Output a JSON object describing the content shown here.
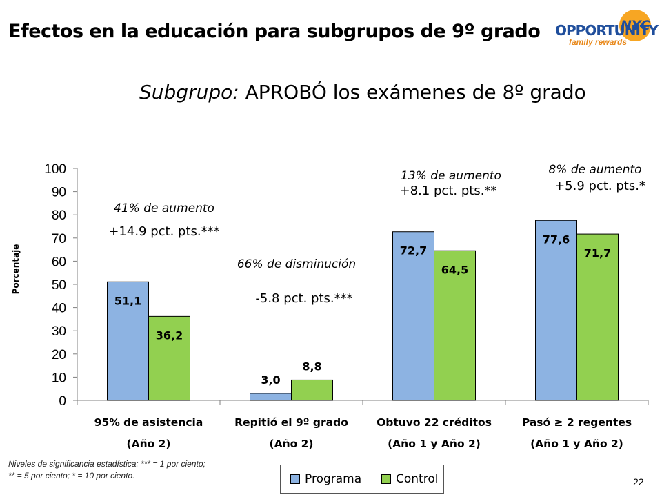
{
  "slide": {
    "title": "Efectos en la educación para subgrupos de 9º grado",
    "subtitle_label": "Subgrupo:",
    "subtitle_rest": "APROBÓ los exámenes de 8º grado",
    "page_number": "22",
    "footnote_line1": "Niveles de significancia estadística: *** = 1 por ciento;",
    "footnote_line2": "** = 5 por ciento; * = 10 por ciento."
  },
  "logo": {
    "word": "OPPORTUNITY",
    "nyc": "NYC",
    "tagline": "family rewards"
  },
  "colors": {
    "programa": "#8db3e2",
    "control": "#92d050",
    "rule": "#b9c98a"
  },
  "chart_data": {
    "type": "bar",
    "ylabel": "Porcentaje",
    "ylim": [
      0,
      100
    ],
    "yticks": [
      0,
      10,
      20,
      30,
      40,
      50,
      60,
      70,
      80,
      90,
      100
    ],
    "grid": false,
    "legend_position": "bottom-center",
    "categories": [
      {
        "line1": "95% de asistencia",
        "line2": "(Año 2)"
      },
      {
        "line1": "Repitió el 9º grado",
        "line2": "(Año 2)"
      },
      {
        "line1": "Obtuvo 22 créditos",
        "line2": "(Año 1 y Año 2)"
      },
      {
        "line1": "Pasó ≥ 2 regentes",
        "line2": "(Año 1 y Año 2)"
      }
    ],
    "series": [
      {
        "name": "Programa",
        "values": [
          51.1,
          3.0,
          72.7,
          77.6
        ],
        "labels": [
          "51,1",
          "3,0",
          "72,7",
          "77,6"
        ]
      },
      {
        "name": "Control",
        "values": [
          36.2,
          8.8,
          64.5,
          71.7
        ],
        "labels": [
          "36,2",
          "8,8",
          "64,5",
          "71,7"
        ]
      }
    ],
    "annotations": [
      {
        "pct": "41% de aumento",
        "pts": "+14.9 pct. pts.***"
      },
      {
        "pct": "66% de disminución",
        "pts": "-5.8 pct. pts.***"
      },
      {
        "pct": "13% de aumento",
        "pts": "+8.1 pct. pts.**"
      },
      {
        "pct": "8% de aumento",
        "pts": "+5.9 pct. pts.*"
      }
    ]
  }
}
